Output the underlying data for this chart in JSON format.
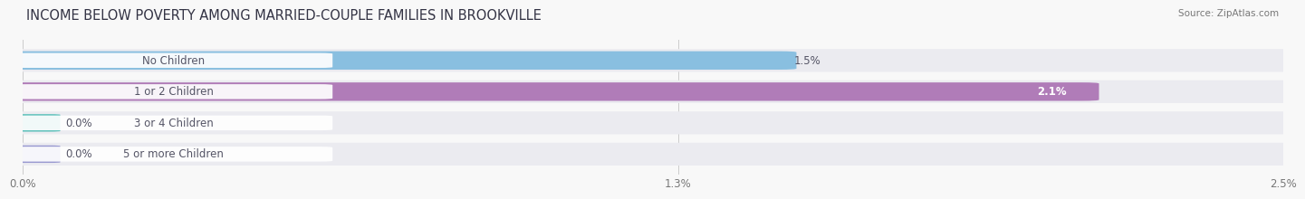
{
  "title": "INCOME BELOW POVERTY AMONG MARRIED-COUPLE FAMILIES IN BROOKVILLE",
  "source": "Source: ZipAtlas.com",
  "categories": [
    "No Children",
    "1 or 2 Children",
    "3 or 4 Children",
    "5 or more Children"
  ],
  "values": [
    1.5,
    2.1,
    0.0,
    0.0
  ],
  "max_value": 2.5,
  "bar_colors": [
    "#89bfe0",
    "#b07cb8",
    "#58bfb8",
    "#9898d0"
  ],
  "bar_bg_color": "#ebebf0",
  "value_labels": [
    "1.5%",
    "2.1%",
    "0.0%",
    "0.0%"
  ],
  "value_label_inside": [
    false,
    true,
    false,
    false
  ],
  "x_ticks": [
    0.0,
    1.3,
    2.5
  ],
  "x_tick_labels": [
    "0.0%",
    "1.3%",
    "2.5%"
  ],
  "title_fontsize": 10.5,
  "source_fontsize": 7.5,
  "bar_label_fontsize": 8.5,
  "value_fontsize": 8.5,
  "xtick_fontsize": 8.5,
  "background_color": "#f8f8f8",
  "label_pill_color": "#ffffff",
  "label_text_color": "#555566"
}
